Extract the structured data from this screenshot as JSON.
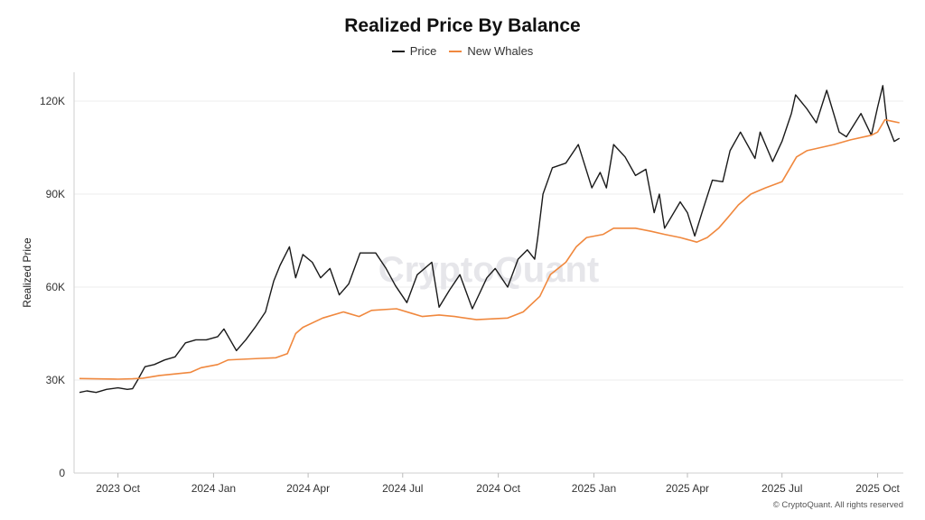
{
  "chart_data": {
    "type": "line",
    "title": "Realized Price By Balance",
    "xlabel": "",
    "ylabel": "Realized Price",
    "watermark": "CryptoQuant",
    "copyright": "© CryptoQuant. All rights reserved",
    "legend_position": "top-center",
    "grid": true,
    "ylim": [
      0,
      130000
    ],
    "xlim": [
      "2023-08-25",
      "2025-10-24"
    ],
    "y_ticks": [
      {
        "value": 0,
        "label": "0"
      },
      {
        "value": 30000,
        "label": "30K"
      },
      {
        "value": 60000,
        "label": "60K"
      },
      {
        "value": 90000,
        "label": "90K"
      },
      {
        "value": 120000,
        "label": "120K"
      }
    ],
    "x_ticks": [
      {
        "date": "2023-10-01",
        "label": "2023 Oct"
      },
      {
        "date": "2024-01-01",
        "label": "2024 Jan"
      },
      {
        "date": "2024-04-01",
        "label": "2024 Apr"
      },
      {
        "date": "2024-07-01",
        "label": "2024 Jul"
      },
      {
        "date": "2024-10-01",
        "label": "2024 Oct"
      },
      {
        "date": "2025-01-01",
        "label": "2025 Jan"
      },
      {
        "date": "2025-04-01",
        "label": "2025 Apr"
      },
      {
        "date": "2025-07-01",
        "label": "2025 Jul"
      },
      {
        "date": "2025-10-01",
        "label": "2025 Oct"
      }
    ],
    "series": [
      {
        "name": "Price",
        "color": "#1a1a1a",
        "points": [
          [
            "2023-08-25",
            26000
          ],
          [
            "2023-09-01",
            26500
          ],
          [
            "2023-09-10",
            26000
          ],
          [
            "2023-09-20",
            27000
          ],
          [
            "2023-10-01",
            27500
          ],
          [
            "2023-10-10",
            27000
          ],
          [
            "2023-10-15",
            27200
          ],
          [
            "2023-10-20",
            30000
          ],
          [
            "2023-10-27",
            34300
          ],
          [
            "2023-11-05",
            35000
          ],
          [
            "2023-11-15",
            36500
          ],
          [
            "2023-11-25",
            37500
          ],
          [
            "2023-12-05",
            42000
          ],
          [
            "2023-12-15",
            43000
          ],
          [
            "2023-12-25",
            43000
          ],
          [
            "2024-01-05",
            44000
          ],
          [
            "2024-01-11",
            46500
          ],
          [
            "2024-01-23",
            39500
          ],
          [
            "2024-02-01",
            43000
          ],
          [
            "2024-02-10",
            47000
          ],
          [
            "2024-02-20",
            52000
          ],
          [
            "2024-02-28",
            62000
          ],
          [
            "2024-03-05",
            67000
          ],
          [
            "2024-03-14",
            73000
          ],
          [
            "2024-03-20",
            63000
          ],
          [
            "2024-03-27",
            70500
          ],
          [
            "2024-04-05",
            68000
          ],
          [
            "2024-04-13",
            63000
          ],
          [
            "2024-04-22",
            66000
          ],
          [
            "2024-05-01",
            57500
          ],
          [
            "2024-05-10",
            61000
          ],
          [
            "2024-05-21",
            71000
          ],
          [
            "2024-06-05",
            71000
          ],
          [
            "2024-06-15",
            66000
          ],
          [
            "2024-06-24",
            60500
          ],
          [
            "2024-07-05",
            55000
          ],
          [
            "2024-07-15",
            64000
          ],
          [
            "2024-07-29",
            68000
          ],
          [
            "2024-08-05",
            53500
          ],
          [
            "2024-08-15",
            59000
          ],
          [
            "2024-08-25",
            64000
          ],
          [
            "2024-09-06",
            53000
          ],
          [
            "2024-09-20",
            63000
          ],
          [
            "2024-09-28",
            66000
          ],
          [
            "2024-10-10",
            60000
          ],
          [
            "2024-10-20",
            69000
          ],
          [
            "2024-10-29",
            72000
          ],
          [
            "2024-11-05",
            69000
          ],
          [
            "2024-11-08",
            76000
          ],
          [
            "2024-11-13",
            90000
          ],
          [
            "2024-11-22",
            98500
          ],
          [
            "2024-12-05",
            100000
          ],
          [
            "2024-12-17",
            106000
          ],
          [
            "2024-12-30",
            92000
          ],
          [
            "2025-01-07",
            97000
          ],
          [
            "2025-01-13",
            92000
          ],
          [
            "2025-01-20",
            106000
          ],
          [
            "2025-01-31",
            102000
          ],
          [
            "2025-02-10",
            96000
          ],
          [
            "2025-02-20",
            98000
          ],
          [
            "2025-02-28",
            84000
          ],
          [
            "2025-03-05",
            90000
          ],
          [
            "2025-03-10",
            79000
          ],
          [
            "2025-03-25",
            87500
          ],
          [
            "2025-04-01",
            84000
          ],
          [
            "2025-04-08",
            76500
          ],
          [
            "2025-04-15",
            84000
          ],
          [
            "2025-04-25",
            94500
          ],
          [
            "2025-05-05",
            94000
          ],
          [
            "2025-05-12",
            104000
          ],
          [
            "2025-05-22",
            110000
          ],
          [
            "2025-06-05",
            101500
          ],
          [
            "2025-06-10",
            110000
          ],
          [
            "2025-06-22",
            100500
          ],
          [
            "2025-07-01",
            107000
          ],
          [
            "2025-07-10",
            116000
          ],
          [
            "2025-07-14",
            122000
          ],
          [
            "2025-07-25",
            117500
          ],
          [
            "2025-08-03",
            113000
          ],
          [
            "2025-08-13",
            123500
          ],
          [
            "2025-08-25",
            110000
          ],
          [
            "2025-09-01",
            108500
          ],
          [
            "2025-09-15",
            116000
          ],
          [
            "2025-09-25",
            109000
          ],
          [
            "2025-10-01",
            118000
          ],
          [
            "2025-10-06",
            125000
          ],
          [
            "2025-10-10",
            113000
          ],
          [
            "2025-10-17",
            107000
          ],
          [
            "2025-10-22",
            108000
          ]
        ]
      },
      {
        "name": "New Whales",
        "color": "#f0883e",
        "points": [
          [
            "2023-08-25",
            30500
          ],
          [
            "2023-10-01",
            30300
          ],
          [
            "2023-10-15",
            30400
          ],
          [
            "2023-10-25",
            30600
          ],
          [
            "2023-11-10",
            31500
          ],
          [
            "2023-12-10",
            32500
          ],
          [
            "2023-12-20",
            34000
          ],
          [
            "2024-01-05",
            35000
          ],
          [
            "2024-01-15",
            36500
          ],
          [
            "2024-02-15",
            37000
          ],
          [
            "2024-03-01",
            37200
          ],
          [
            "2024-03-12",
            38500
          ],
          [
            "2024-03-20",
            45000
          ],
          [
            "2024-03-27",
            47000
          ],
          [
            "2024-04-15",
            50000
          ],
          [
            "2024-05-05",
            52000
          ],
          [
            "2024-05-20",
            50500
          ],
          [
            "2024-06-01",
            52500
          ],
          [
            "2024-06-25",
            53000
          ],
          [
            "2024-07-10",
            51500
          ],
          [
            "2024-07-20",
            50500
          ],
          [
            "2024-08-05",
            51000
          ],
          [
            "2024-08-20",
            50500
          ],
          [
            "2024-09-10",
            49500
          ],
          [
            "2024-10-10",
            50000
          ],
          [
            "2024-10-25",
            52000
          ],
          [
            "2024-11-10",
            57000
          ],
          [
            "2024-11-20",
            64000
          ],
          [
            "2024-12-05",
            68000
          ],
          [
            "2024-12-15",
            73000
          ],
          [
            "2024-12-25",
            76000
          ],
          [
            "2025-01-10",
            77000
          ],
          [
            "2025-01-20",
            79000
          ],
          [
            "2025-02-10",
            79000
          ],
          [
            "2025-02-25",
            78000
          ],
          [
            "2025-03-10",
            77000
          ],
          [
            "2025-03-25",
            76000
          ],
          [
            "2025-04-10",
            74500
          ],
          [
            "2025-04-20",
            76000
          ],
          [
            "2025-05-01",
            79000
          ],
          [
            "2025-05-10",
            82500
          ],
          [
            "2025-05-20",
            86500
          ],
          [
            "2025-06-01",
            90000
          ],
          [
            "2025-06-15",
            92000
          ],
          [
            "2025-07-01",
            94000
          ],
          [
            "2025-07-15",
            102000
          ],
          [
            "2025-07-25",
            104000
          ],
          [
            "2025-08-20",
            106000
          ],
          [
            "2025-09-05",
            107500
          ],
          [
            "2025-09-25",
            109000
          ],
          [
            "2025-10-01",
            110000
          ],
          [
            "2025-10-08",
            114000
          ],
          [
            "2025-10-15",
            113500
          ],
          [
            "2025-10-22",
            113000
          ]
        ]
      }
    ]
  }
}
